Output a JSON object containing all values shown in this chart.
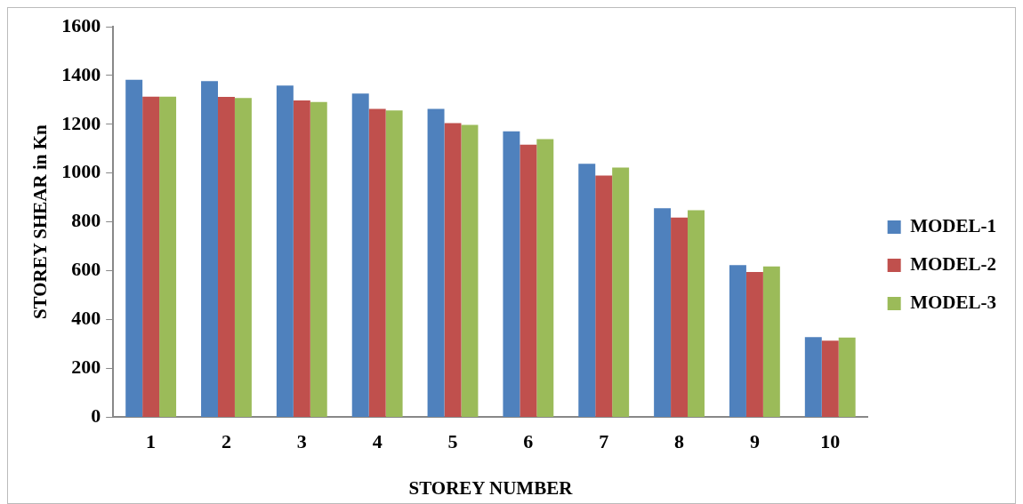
{
  "chart_data": {
    "type": "bar",
    "xlabel": "STOREY NUMBER",
    "ylabel": "STOREY SHEAR in Kn",
    "categories": [
      "1",
      "2",
      "3",
      "4",
      "5",
      "6",
      "7",
      "8",
      "9",
      "10"
    ],
    "series": [
      {
        "name": "MODEL-1",
        "color": "#4f81bd",
        "values": [
          1382,
          1377,
          1359,
          1326,
          1263,
          1171,
          1038,
          856,
          623,
          328
        ]
      },
      {
        "name": "MODEL-2",
        "color": "#c0504d",
        "values": [
          1313,
          1312,
          1298,
          1263,
          1205,
          1117,
          990,
          818,
          595,
          314
        ]
      },
      {
        "name": "MODEL-3",
        "color": "#9bbb59",
        "values": [
          1313,
          1308,
          1291,
          1257,
          1198,
          1139,
          1023,
          848,
          618,
          326
        ]
      }
    ],
    "ylim": [
      0,
      1600
    ],
    "yticks": [
      0,
      200,
      400,
      600,
      800,
      1000,
      1200,
      1400,
      1600
    ],
    "grid": false,
    "legend": "right"
  }
}
